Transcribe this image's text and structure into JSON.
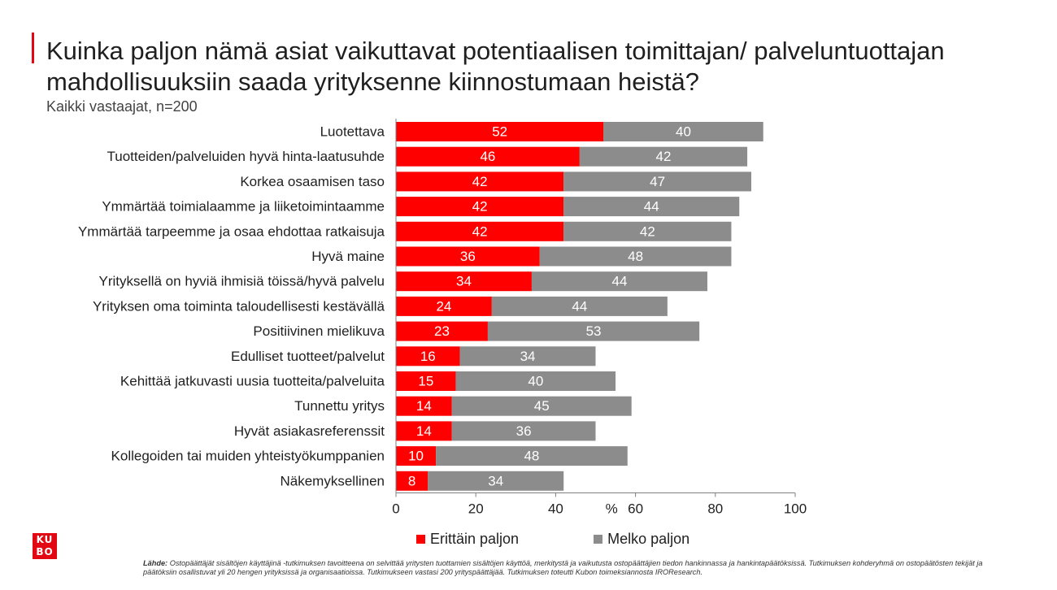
{
  "header": {
    "title": "Kuinka paljon nämä asiat vaikuttavat potentiaalisen toimittajan/ palveluntuottajan mahdollisuuksiin saada yrityksenne kiinnostumaan heistä?",
    "subtitle": "Kaikki vastaajat, n=200"
  },
  "logo": {
    "text": "KUBO"
  },
  "footer": {
    "source_label": "Lähde:",
    "source_text": "Ostopäättäjät sisältöjen käyttäjinä -tutkimuksen tavoitteena on selvittää yritysten tuottamien sisältöjen käyttöä, merkitystä ja vaikutusta ostopäättäjien tiedon hankinnassa ja hankintapäätöksissä. Tutkimuksen kohderyhmä on ostopäätösten tekijät ja päätöksiin osallistuvat yli 20 hengen yrityksissä ja organisaatioissa. Tutkimukseen vastasi 200 yrityspäättäjää.  Tutkimuksen toteutti Kubon toimeksiannosta IROResearch."
  },
  "chart_data": {
    "type": "bar",
    "orientation": "horizontal",
    "stacked": true,
    "title": "Kuinka paljon nämä asiat vaikuttavat potentiaalisen toimittajan/ palveluntuottajan mahdollisuuksiin saada yrityksenne kiinnostumaan heistä?",
    "subtitle": "Kaikki vastaajat, n=200",
    "xlabel": "%",
    "ylabel": "",
    "xlim": [
      0,
      100
    ],
    "xticks": [
      0,
      20,
      40,
      60,
      80,
      100
    ],
    "grid": false,
    "legend_position": "bottom",
    "categories": [
      "Luotettava",
      "Tuotteiden/palveluiden hyvä hinta-laatusuhde",
      "Korkea osaamisen taso",
      "Ymmärtää toimialaamme ja liiketoimintaamme",
      "Ymmärtää tarpeemme ja osaa ehdottaa ratkaisuja",
      "Hyvä maine",
      "Yrityksellä on hyviä ihmisiä töissä/hyvä palvelu",
      "Yrityksen oma toiminta taloudellisesti kestävällä",
      "Positiivinen mielikuva",
      "Edulliset tuotteet/palvelut",
      "Kehittää jatkuvasti uusia tuotteita/palveluita",
      "Tunnettu yritys",
      "Hyvät asiakasreferenssit",
      "Kollegoiden tai muiden yhteistyökumppanien",
      "Näkemyksellinen"
    ],
    "series": [
      {
        "name": "Erittäin paljon",
        "color": "#ff0000",
        "values": [
          52,
          46,
          42,
          42,
          42,
          36,
          34,
          24,
          23,
          16,
          15,
          14,
          14,
          10,
          8
        ]
      },
      {
        "name": "Melko paljon",
        "color": "#8c8c8c",
        "values": [
          40,
          42,
          47,
          44,
          42,
          48,
          44,
          44,
          53,
          34,
          40,
          45,
          36,
          48,
          34
        ]
      }
    ]
  }
}
